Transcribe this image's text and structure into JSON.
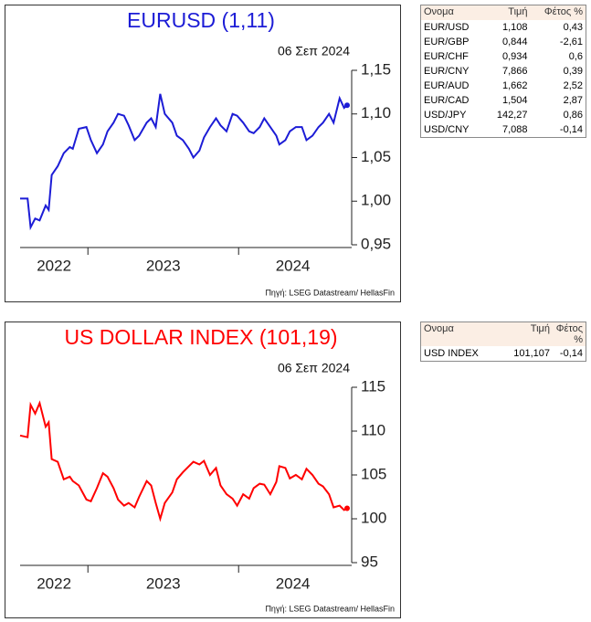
{
  "chart_data": [
    {
      "type": "line",
      "title": "EURUSD (1,11)",
      "subtitle": "06 Σεπ 2024",
      "source": "Πηγή: LSEG Datastream/ HellasFin",
      "x": [
        2022.55,
        2022.6,
        2022.62,
        2022.65,
        2022.68,
        2022.72,
        2022.74,
        2022.76,
        2022.8,
        2022.84,
        2022.88,
        2022.9,
        2022.94,
        2022.99,
        2023.02,
        2023.06,
        2023.1,
        2023.13,
        2023.17,
        2023.2,
        2023.24,
        2023.27,
        2023.31,
        2023.34,
        2023.39,
        2023.42,
        2023.45,
        2023.48,
        2023.51,
        2023.56,
        2023.59,
        2023.63,
        2023.67,
        2023.7,
        2023.74,
        2023.77,
        2023.81,
        2023.85,
        2023.88,
        2023.92,
        2023.96,
        2023.99,
        2024.03,
        2024.07,
        2024.1,
        2024.14,
        2024.17,
        2024.21,
        2024.25,
        2024.27,
        2024.31,
        2024.34,
        2024.38,
        2024.42,
        2024.45,
        2024.49,
        2024.53,
        2024.56,
        2024.6,
        2024.63,
        2024.67,
        2024.7,
        2024.72
      ],
      "series": [
        {
          "name": "EURUSD",
          "color": "#1c1cd6",
          "values": [
            1.003,
            1.003,
            0.97,
            0.98,
            0.978,
            0.995,
            0.99,
            1.03,
            1.04,
            1.055,
            1.062,
            1.06,
            1.083,
            1.085,
            1.07,
            1.055,
            1.065,
            1.08,
            1.09,
            1.1,
            1.098,
            1.087,
            1.07,
            1.075,
            1.09,
            1.095,
            1.085,
            1.123,
            1.1,
            1.09,
            1.075,
            1.07,
            1.06,
            1.05,
            1.058,
            1.073,
            1.085,
            1.095,
            1.087,
            1.08,
            1.1,
            1.098,
            1.09,
            1.08,
            1.078,
            1.085,
            1.095,
            1.085,
            1.075,
            1.065,
            1.07,
            1.08,
            1.085,
            1.085,
            1.07,
            1.075,
            1.085,
            1.09,
            1.1,
            1.09,
            1.118,
            1.107,
            1.11
          ]
        }
      ],
      "xlim": [
        2022.55,
        2024.72
      ],
      "xticks": [
        2023,
        2024
      ],
      "xlabels": [
        2022,
        2023,
        2024
      ],
      "ylim": [
        0.95,
        1.15
      ],
      "yticks": [
        {
          "value": 0.95,
          "label": "0,95"
        },
        {
          "value": 1.0,
          "label": "1,00"
        },
        {
          "value": 1.05,
          "label": "1,05"
        },
        {
          "value": 1.1,
          "label": "1,10"
        },
        {
          "value": 1.15,
          "label": "1,15"
        }
      ]
    },
    {
      "type": "line",
      "title": "US DOLLAR INDEX (101,19)",
      "subtitle": "06 Σεπ 2024",
      "source": "Πηγή: LSEG Datastream/ HellasFin",
      "x": [
        2022.55,
        2022.6,
        2022.62,
        2022.65,
        2022.68,
        2022.72,
        2022.74,
        2022.76,
        2022.8,
        2022.84,
        2022.88,
        2022.9,
        2022.94,
        2022.99,
        2023.02,
        2023.06,
        2023.1,
        2023.13,
        2023.17,
        2023.2,
        2023.24,
        2023.27,
        2023.31,
        2023.34,
        2023.39,
        2023.42,
        2023.45,
        2023.48,
        2023.51,
        2023.56,
        2023.59,
        2023.63,
        2023.67,
        2023.7,
        2023.74,
        2023.77,
        2023.81,
        2023.85,
        2023.88,
        2023.92,
        2023.96,
        2023.99,
        2024.03,
        2024.07,
        2024.1,
        2024.14,
        2024.17,
        2024.21,
        2024.25,
        2024.27,
        2024.31,
        2024.34,
        2024.38,
        2024.42,
        2024.45,
        2024.49,
        2024.53,
        2024.56,
        2024.6,
        2024.63,
        2024.67,
        2024.7,
        2024.72
      ],
      "series": [
        {
          "name": "US DOLLAR INDEX",
          "color": "#ff0000",
          "values": [
            109.5,
            109.3,
            113.0,
            112.0,
            113.2,
            110.5,
            111.0,
            106.8,
            106.5,
            104.5,
            104.8,
            104.3,
            103.8,
            102.2,
            102.0,
            103.5,
            105.2,
            104.8,
            103.5,
            102.2,
            101.5,
            101.8,
            101.3,
            102.5,
            104.3,
            103.8,
            101.8,
            100.0,
            101.8,
            103.0,
            104.5,
            105.3,
            106.0,
            106.5,
            106.2,
            106.6,
            105.0,
            105.8,
            103.8,
            102.8,
            102.3,
            101.5,
            102.8,
            102.3,
            103.5,
            104.0,
            103.9,
            102.8,
            104.2,
            106.0,
            105.8,
            104.6,
            105.0,
            104.5,
            105.7,
            105.0,
            104.0,
            103.7,
            102.8,
            101.3,
            101.5,
            101.0,
            101.2
          ]
        }
      ],
      "xlim": [
        2022.55,
        2024.72
      ],
      "xticks": [
        2023,
        2024
      ],
      "xlabels": [
        2022,
        2023,
        2024
      ],
      "ylim": [
        95,
        115
      ],
      "yticks": [
        95,
        100,
        105,
        110,
        115
      ]
    }
  ],
  "tables": [
    {
      "columns": [
        "Ονομα",
        "Τιμή",
        "Φέτος %"
      ],
      "rows": [
        [
          "EUR/USD",
          "1,108",
          "0,43"
        ],
        [
          "EUR/GBP",
          "0,844",
          "-2,61"
        ],
        [
          "EUR/CHF",
          "0,934",
          "0,6"
        ],
        [
          "EUR/CNY",
          "7,866",
          "0,39"
        ],
        [
          "EUR/AUD",
          "1,662",
          "2,52"
        ],
        [
          "EUR/CAD",
          "1,504",
          "2,87"
        ],
        [
          "USD/JPY",
          "142,27",
          "0,86"
        ],
        [
          "USD/CNY",
          "7,088",
          "-0,14"
        ]
      ]
    },
    {
      "columns": [
        "Ονομα",
        "Τιμή",
        "Φέτος %"
      ],
      "rows": [
        [
          "USD INDEX",
          "101,107",
          "-0,14"
        ]
      ]
    }
  ]
}
